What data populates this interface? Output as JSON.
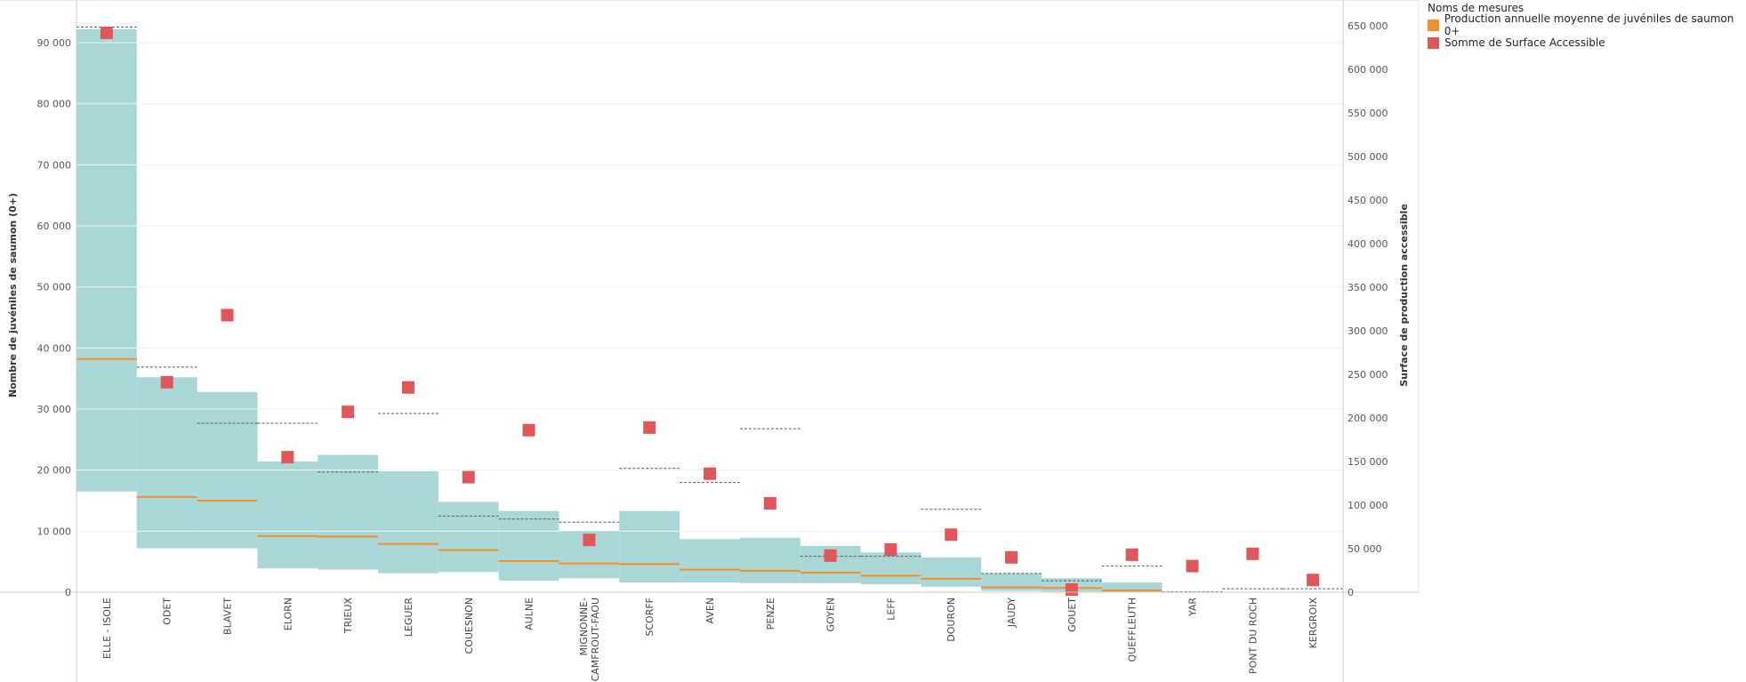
{
  "chart_data": {
    "type": "bar",
    "categories": [
      "ELLE - ISOLE",
      "ODET",
      "BLAVET",
      "ELORN",
      "TRIEUX",
      "LEGUER",
      "COUESNON",
      "AULNE",
      "MIGNONNE-CAMFROUT-FAOU",
      "SCORFF",
      "AVEN",
      "PENZE",
      "GOYEN",
      "LEFF",
      "DOURON",
      "JAUDY",
      "GOUET",
      "QUEFFLEUTH",
      "YAR",
      "PONT DU ROCH",
      "KERGROIX"
    ],
    "category_display": [
      [
        "ELLE - ISOLE"
      ],
      [
        "ODET"
      ],
      [
        "BLAVET"
      ],
      [
        "ELORN"
      ],
      [
        "TRIEUX"
      ],
      [
        "LEGUER"
      ],
      [
        "COUESNON"
      ],
      [
        "AULNE"
      ],
      [
        "MIGNONNE-",
        "CAMFROUT-FAOU"
      ],
      [
        "SCORFF"
      ],
      [
        "AVEN"
      ],
      [
        "PENZE"
      ],
      [
        "GOYEN"
      ],
      [
        "LEFF"
      ],
      [
        "DOURON"
      ],
      [
        "JAUDY"
      ],
      [
        "GOUET"
      ],
      [
        "QUEFFLEUTH"
      ],
      [
        "YAR"
      ],
      [
        "PONT DU ROCH"
      ],
      [
        "KERGROIX"
      ]
    ],
    "band": {
      "upper": [
        92200,
        35200,
        32800,
        21400,
        22500,
        19800,
        14800,
        13300,
        10000,
        13300,
        8700,
        8900,
        7600,
        6500,
        5700,
        3100,
        2300,
        1600,
        0,
        0,
        0
      ],
      "lower": [
        16500,
        7200,
        7200,
        3900,
        3700,
        3100,
        3300,
        1900,
        2300,
        1600,
        1600,
        1500,
        1500,
        1300,
        900,
        200,
        100,
        0,
        0,
        0,
        0
      ]
    },
    "series": [
      {
        "name": "Production annuelle moyenne de juvéniles de saumon 0+",
        "axis": "left",
        "color": "#f28e2b",
        "values": [
          38200,
          15600,
          15000,
          9200,
          9100,
          7900,
          6900,
          5100,
          4700,
          4600,
          3700,
          3500,
          3200,
          2700,
          2200,
          800,
          700,
          300,
          0,
          0,
          0
        ]
      },
      {
        "name": "Somme de Surface Accessible",
        "axis": "right",
        "color": "#e15759",
        "values": [
          642000,
          241000,
          318000,
          155000,
          207000,
          235000,
          132000,
          186000,
          60000,
          189000,
          136000,
          102000,
          42000,
          49000,
          66000,
          40000,
          3000,
          43000,
          30000,
          44000,
          14000
        ]
      }
    ],
    "reference": [
      92500,
      36800,
      27600,
      27600,
      19600,
      29200,
      12400,
      11900,
      11400,
      20200,
      17900,
      26700,
      5800,
      5800,
      13500,
      3000,
      1800,
      4200,
      0,
      500,
      500
    ],
    "y_left": {
      "label": "Nombre de juvéniles de saumon (0+)",
      "ticks": [
        0,
        10000,
        20000,
        30000,
        40000,
        50000,
        60000,
        70000,
        80000,
        90000
      ],
      "tick_labels": [
        "0",
        "10 000",
        "20 000",
        "30 000",
        "40 000",
        "50 000",
        "60 000",
        "70 000",
        "80 000",
        "90 000"
      ],
      "range": [
        0,
        97000
      ]
    },
    "y_right": {
      "label": "Surface de production accessible",
      "ticks": [
        0,
        50000,
        100000,
        150000,
        200000,
        250000,
        300000,
        350000,
        400000,
        450000,
        500000,
        550000,
        600000,
        650000
      ],
      "tick_labels": [
        "0",
        "50 000",
        "100 000",
        "150 000",
        "200 000",
        "250 000",
        "300 000",
        "350 000",
        "400 000",
        "450 000",
        "500 000",
        "550 000",
        "600 000",
        "650 000"
      ],
      "range": [
        0,
        679700
      ]
    },
    "grid": true,
    "legend_position": "top-right"
  },
  "legend": {
    "title": "Noms de mesures",
    "items": [
      {
        "label": "Production annuelle moyenne de juvéniles de saumon 0+",
        "color": "#f28e2b"
      },
      {
        "label": "Somme de Surface Accessible",
        "color": "#e15759"
      }
    ]
  },
  "colors": {
    "band": "#a9d6d6",
    "reference": "#555555",
    "grid": "#eeeeee",
    "axis": "#cccccc"
  }
}
